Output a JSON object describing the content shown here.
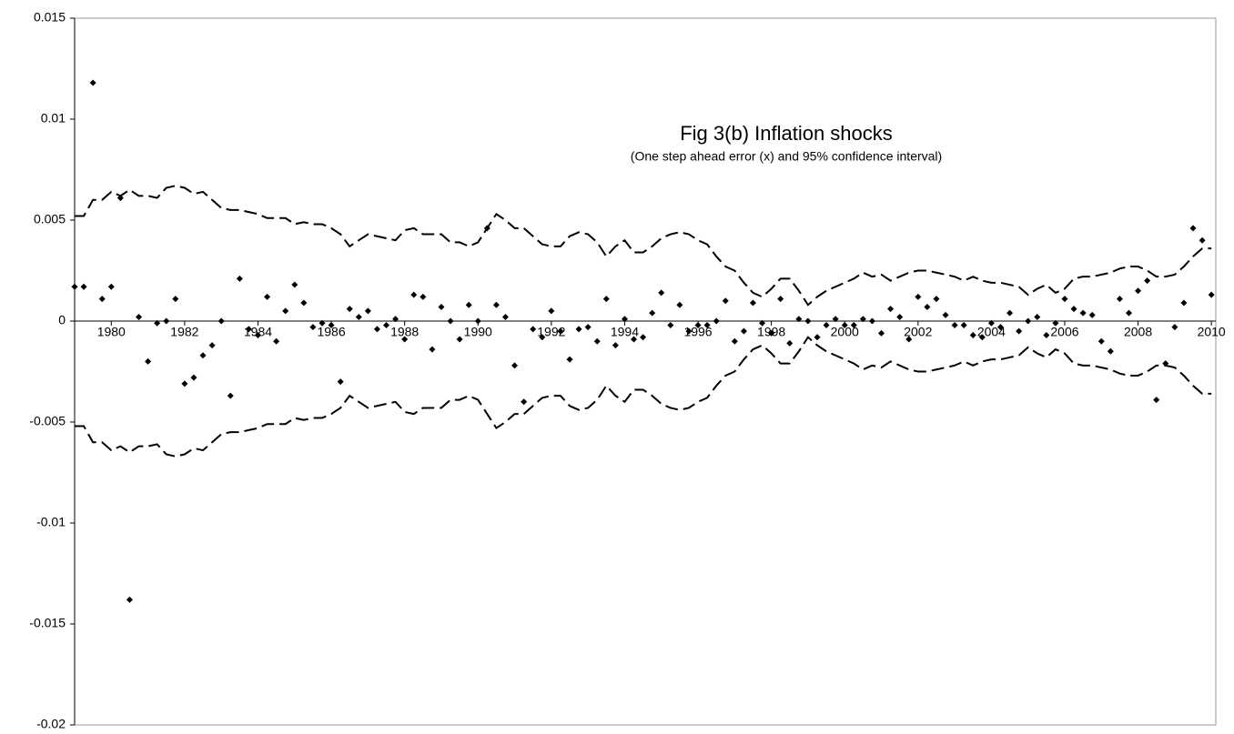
{
  "chart_data": {
    "type": "scatter",
    "title": "Fig 3(b) Inflation shocks",
    "subtitle": "(One step ahead error (x) and 95% confidence interval)",
    "x": [
      1979,
      1979.25,
      1979.5,
      1979.75,
      1980,
      1980.25,
      1980.5,
      1980.75,
      1981,
      1981.25,
      1981.5,
      1981.75,
      1982,
      1982.25,
      1982.5,
      1982.75,
      1983,
      1983.25,
      1983.5,
      1983.75,
      1984,
      1984.25,
      1984.5,
      1984.75,
      1985,
      1985.25,
      1985.5,
      1985.75,
      1986,
      1986.25,
      1986.5,
      1986.75,
      1987,
      1987.25,
      1987.5,
      1987.75,
      1988,
      1988.25,
      1988.5,
      1988.75,
      1989,
      1989.25,
      1989.5,
      1989.75,
      1990,
      1990.25,
      1990.5,
      1990.75,
      1991,
      1991.25,
      1991.5,
      1991.75,
      1992,
      1992.25,
      1992.5,
      1992.75,
      1993,
      1993.25,
      1993.5,
      1993.75,
      1994,
      1994.25,
      1994.5,
      1994.75,
      1995,
      1995.25,
      1995.5,
      1995.75,
      1996,
      1996.25,
      1996.5,
      1996.75,
      1997,
      1997.25,
      1997.5,
      1997.75,
      1998,
      1998.25,
      1998.5,
      1998.75,
      1999,
      1999.25,
      1999.5,
      1999.75,
      2000,
      2000.25,
      2000.5,
      2000.75,
      2001,
      2001.25,
      2001.5,
      2001.75,
      2002,
      2002.25,
      2002.5,
      2002.75,
      2003,
      2003.25,
      2003.5,
      2003.75,
      2004,
      2004.25,
      2004.5,
      2004.75,
      2005,
      2005.25,
      2005.5,
      2005.75,
      2006,
      2006.25,
      2006.5,
      2006.75,
      2007,
      2007.25,
      2007.5,
      2007.75,
      2008,
      2008.25,
      2008.5,
      2008.75,
      2009,
      2009.25,
      2009.5,
      2009.75,
      2010
    ],
    "series": [
      {
        "mark": "diamond",
        "color": "#000000",
        "values": [
          0.0017,
          0.0017,
          0.0118,
          0.0011,
          0.0017,
          0.0061,
          -0.0138,
          0.0002,
          -0.002,
          -0.0001,
          0,
          0.0011,
          -0.0031,
          -0.0028,
          -0.0017,
          -0.0012,
          0,
          -0.0037,
          0.0021,
          -0.0004,
          -0.0007,
          0.0012,
          -0.001,
          0.0005,
          0.0018,
          0.0009,
          -0.0003,
          -0.0001,
          -0.0002,
          -0.003,
          0.0006,
          0.0002,
          0.0005,
          -0.0004,
          -0.0002,
          0.0001,
          -0.0009,
          0.0013,
          0.0012,
          -0.0014,
          0.0007,
          0,
          -0.0009,
          0.0008,
          0,
          0.0046,
          0.0008,
          0.0002,
          -0.0022,
          -0.004,
          -0.0004,
          -0.0008,
          0.0005,
          -0.0005,
          -0.0019,
          -0.0004,
          -0.0003,
          -0.001,
          0.0011,
          -0.0012,
          0.0001,
          -0.0009,
          -0.0008,
          0.0004,
          0.0014,
          -0.0002,
          0.0008,
          -0.0005,
          -0.0002,
          -0.0002,
          0,
          0.001,
          -0.001,
          -0.0005,
          0.0009,
          -0.0001,
          -0.0006,
          0.0011,
          -0.0011,
          0.0001,
          0,
          -0.0008,
          -0.0002,
          0.0001,
          -0.0002,
          -0.0002,
          0.0001,
          0,
          -0.0006,
          0.0006,
          0.0002,
          -0.0009,
          0.0012,
          0.0007,
          0.0011,
          0.0003,
          -0.0002,
          -0.0002,
          -0.0007,
          -0.0008,
          -0.0001,
          -0.0003,
          0.0004,
          -0.0005,
          0,
          0.0002,
          -0.0007,
          -0.0001,
          0.0011,
          0.0006,
          0.0004,
          0.0003,
          -0.001,
          -0.0015,
          0.0011,
          0.0004,
          0.0015,
          0.002,
          -0.0039,
          -0.0021,
          -0.0003,
          0.0009,
          0.0046,
          0.004,
          0.0013
        ]
      },
      {
        "mark": "dashed-line",
        "color": "#000000",
        "values": [
          0.0052,
          0.0052,
          0.006,
          0.006,
          0.0064,
          0.0062,
          0.0065,
          0.0062,
          0.0062,
          0.0061,
          0.0066,
          0.0067,
          0.0066,
          0.0063,
          0.0064,
          0.006,
          0.0056,
          0.0055,
          0.0055,
          0.0054,
          0.0053,
          0.0051,
          0.0051,
          0.0051,
          0.0048,
          0.0049,
          0.0048,
          0.0048,
          0.0046,
          0.0043,
          0.0037,
          0.004,
          0.0043,
          0.0042,
          0.0041,
          0.004,
          0.0045,
          0.0046,
          0.0043,
          0.0043,
          0.0043,
          0.0039,
          0.0039,
          0.0037,
          0.0039,
          0.0046,
          0.0053,
          0.005,
          0.0046,
          0.0046,
          0.0042,
          0.0038,
          0.0037,
          0.0037,
          0.0042,
          0.0044,
          0.0043,
          0.0039,
          0.0032,
          0.0037,
          0.004,
          0.0034,
          0.0034,
          0.0037,
          0.0041,
          0.0043,
          0.0044,
          0.0043,
          0.004,
          0.0038,
          0.0032,
          0.0027,
          0.0025,
          0.0019,
          0.0014,
          0.0012,
          0.0016,
          0.0021,
          0.0021,
          0.0015,
          0.0008,
          0.0012,
          0.0015,
          0.0017,
          0.0019,
          0.0021,
          0.0024,
          0.0022,
          0.0023,
          0.002,
          0.0022,
          0.0024,
          0.0025,
          0.0025,
          0.0024,
          0.0023,
          0.0022,
          0.002,
          0.0022,
          0.002,
          0.0019,
          0.0019,
          0.0018,
          0.0017,
          0.0013,
          0.0016,
          0.0018,
          0.0014,
          0.0016,
          0.0021,
          0.0022,
          0.0022,
          0.0023,
          0.0024,
          0.0026,
          0.0027,
          0.0027,
          0.0025,
          0.0022,
          0.0022,
          0.0023,
          0.0027,
          0.0032,
          0.0036,
          0.0036
        ]
      },
      {
        "mark": "dashed-line",
        "color": "#000000",
        "values": [
          -0.0052,
          -0.0052,
          -0.006,
          -0.006,
          -0.0064,
          -0.0062,
          -0.0065,
          -0.0062,
          -0.0062,
          -0.0061,
          -0.0066,
          -0.0067,
          -0.0066,
          -0.0063,
          -0.0064,
          -0.006,
          -0.0056,
          -0.0055,
          -0.0055,
          -0.0054,
          -0.0053,
          -0.0051,
          -0.0051,
          -0.0051,
          -0.0048,
          -0.0049,
          -0.0048,
          -0.0048,
          -0.0046,
          -0.0043,
          -0.0037,
          -0.004,
          -0.0043,
          -0.0042,
          -0.0041,
          -0.004,
          -0.0045,
          -0.0046,
          -0.0043,
          -0.0043,
          -0.0043,
          -0.0039,
          -0.0039,
          -0.0037,
          -0.0039,
          -0.0046,
          -0.0053,
          -0.005,
          -0.0046,
          -0.0046,
          -0.0042,
          -0.0038,
          -0.0037,
          -0.0037,
          -0.0042,
          -0.0044,
          -0.0043,
          -0.0039,
          -0.0032,
          -0.0037,
          -0.004,
          -0.0034,
          -0.0034,
          -0.0037,
          -0.0041,
          -0.0043,
          -0.0044,
          -0.0043,
          -0.004,
          -0.0038,
          -0.0032,
          -0.0027,
          -0.0025,
          -0.0019,
          -0.0014,
          -0.0012,
          -0.0016,
          -0.0021,
          -0.0021,
          -0.0015,
          -0.0008,
          -0.0012,
          -0.0015,
          -0.0017,
          -0.0019,
          -0.0021,
          -0.0024,
          -0.0022,
          -0.0023,
          -0.002,
          -0.0022,
          -0.0024,
          -0.0025,
          -0.0025,
          -0.0024,
          -0.0023,
          -0.0022,
          -0.002,
          -0.0022,
          -0.002,
          -0.0019,
          -0.0019,
          -0.0018,
          -0.0017,
          -0.0013,
          -0.0016,
          -0.0018,
          -0.0014,
          -0.0016,
          -0.0021,
          -0.0022,
          -0.0022,
          -0.0023,
          -0.0024,
          -0.0026,
          -0.0027,
          -0.0027,
          -0.0025,
          -0.0022,
          -0.0022,
          -0.0023,
          -0.0027,
          -0.0032,
          -0.0036,
          -0.0036
        ]
      }
    ],
    "xlim": [
      1979,
      2010.12
    ],
    "xticks": [
      1980,
      1982,
      1984,
      1986,
      1988,
      1990,
      1992,
      1994,
      1996,
      1998,
      2000,
      2002,
      2004,
      2006,
      2008,
      2010
    ],
    "ylim": [
      -0.02,
      0.015
    ],
    "yticks": [
      0.015,
      0.01,
      0.005,
      0,
      -0.005,
      -0.01,
      -0.015,
      -0.02
    ],
    "grid": false
  }
}
